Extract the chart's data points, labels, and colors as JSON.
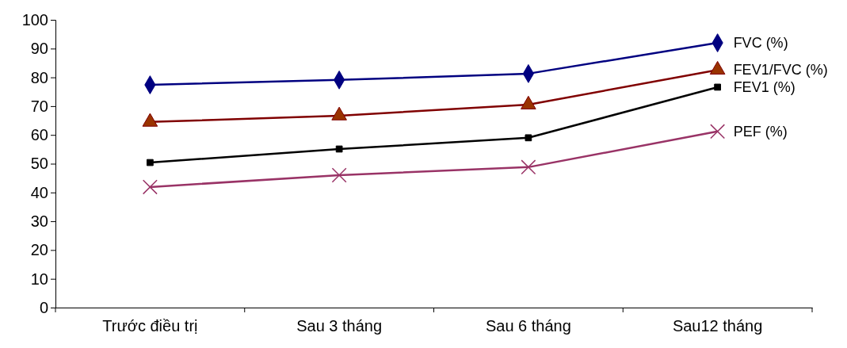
{
  "chart_data": {
    "type": "line",
    "categories": [
      "Trước điều trị",
      "Sau 3 tháng",
      "Sau 6 tháng",
      "Sau12 tháng"
    ],
    "ylim": [
      0,
      100
    ],
    "yticks": [
      0,
      10,
      20,
      30,
      40,
      50,
      60,
      70,
      80,
      90,
      100
    ],
    "grid": false,
    "series": [
      {
        "name": "FVC (%)",
        "color": "#000080",
        "marker": "diamond",
        "values": [
          77.4,
          79.1,
          81.3,
          92.0
        ]
      },
      {
        "name": "FEV1/FVC (%)",
        "color": "#800000",
        "marker": "triangle",
        "values": [
          64.5,
          66.7,
          70.5,
          82.6
        ]
      },
      {
        "name": "FEV1 (%)",
        "color": "#000000",
        "marker": "square",
        "values": [
          50.4,
          55.1,
          59.0,
          76.6
        ]
      },
      {
        "name": "PEF (%)",
        "color": "#993366",
        "marker": "cross",
        "values": [
          41.9,
          46.0,
          48.8,
          61.2
        ]
      }
    ]
  }
}
